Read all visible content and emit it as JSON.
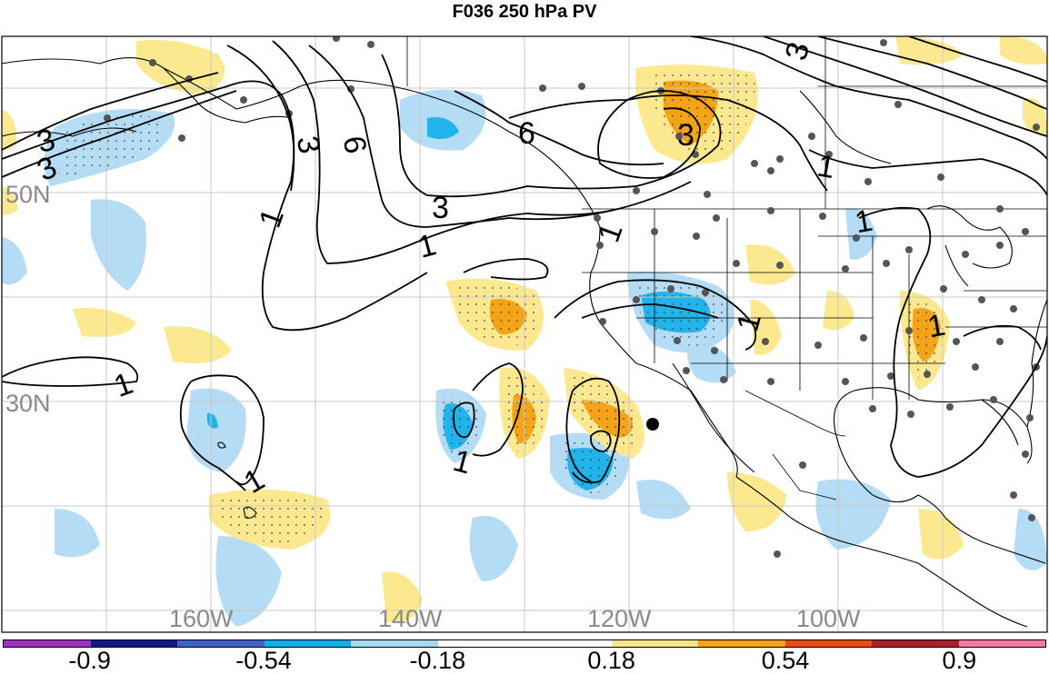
{
  "title": "F036 250 hPa PV",
  "map": {
    "lat_labels": [
      "50N",
      "30N"
    ],
    "lon_labels": [
      "160W",
      "140W",
      "120W",
      "100W"
    ],
    "contour_labels": [
      "3",
      "3",
      "1",
      "1",
      "6",
      "3",
      "3",
      "6",
      "3",
      "1",
      "1",
      "1",
      "1",
      "1",
      "3",
      "1",
      "1",
      "1"
    ],
    "colors": {
      "pos_light": "#fbe88f",
      "pos_mid": "#f5a317",
      "neg_light": "#b5dcf5",
      "neg_mid": "#20b3ec",
      "land": "#000000",
      "grid": "#c8c8c8",
      "station": "#555555"
    }
  },
  "colorbar": {
    "colors": [
      "#9b2fc8",
      "#0d1a8a",
      "#3f62c7",
      "#0fb0ea",
      "#a7d8f3",
      "#ffffff",
      "#ffffff",
      "#fae48a",
      "#f5a418",
      "#ee4a14",
      "#a8202a",
      "#f47aa3"
    ],
    "tick_labels": [
      "-0.9",
      "-0.54",
      "-0.18",
      "0.18",
      "0.54",
      "0.9"
    ]
  }
}
